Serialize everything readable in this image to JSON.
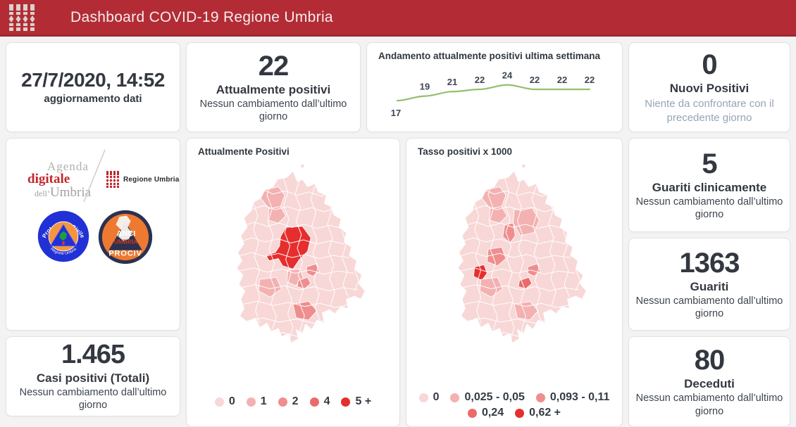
{
  "header": {
    "title": "Dashboard COVID-19 Regione Umbria"
  },
  "cards": {
    "updated": {
      "value": "27/7/2020, 14:52",
      "label": "aggiornamento dati"
    },
    "current_positives": {
      "value": "22",
      "label": "Attualmente positivi",
      "sublabel": "Nessun cambiamento dall’ultimo giorno"
    },
    "new_positives": {
      "value": "0",
      "label": "Nuovi Positivi",
      "note": "Niente da confrontare con il precedente giorno"
    },
    "clinically_recovered": {
      "value": "5",
      "label": "Guariti clinicamente",
      "sublabel": "Nessun cambiamento dall’ultimo giorno"
    },
    "recovered": {
      "value": "1363",
      "label": "Guariti",
      "sublabel": "Nessun cambiamento dall’ultimo giorno"
    },
    "deceased": {
      "value": "80",
      "label": "Deceduti",
      "sublabel": "Nessun cambiamento dall’ultimo giorno"
    },
    "total_cases": {
      "value": "1.465",
      "label": "Casi positivi (Totali)",
      "sublabel": "Nessun cambiamento dall’ultimo giorno"
    }
  },
  "chart_data": [
    {
      "type": "line",
      "title": "Andamento attualmente positivi ultima settimana",
      "values": [
        17,
        19,
        21,
        22,
        24,
        22,
        22,
        22
      ],
      "color": "#94be6e",
      "label_color": "#3c4654",
      "data_labels_shown": true,
      "axes_shown": false,
      "ylim": [
        15,
        26
      ]
    },
    {
      "type": "choropleth",
      "region": "Umbria",
      "title": "Attualmente Positivi",
      "legend": [
        {
          "label": "0",
          "color": "#f8d7d7"
        },
        {
          "label": "1",
          "color": "#f4b1b1"
        },
        {
          "label": "2",
          "color": "#ef8e8e"
        },
        {
          "label": "4",
          "color": "#ea6a6a"
        },
        {
          "label": "5 +",
          "color": "#e62e2e"
        }
      ],
      "highlighted": {
        "perugia": 4,
        "nw1": 1,
        "nw2": 1,
        "torgiano": 1,
        "magione": 1,
        "east1": 2,
        "east2": 2,
        "spoleto": 2
      }
    },
    {
      "type": "choropleth",
      "region": "Umbria",
      "title": "Tasso positivi x 1000",
      "legend": [
        {
          "label": "0",
          "color": "#f8d7d7"
        },
        {
          "label": "0,025 - 0,05",
          "color": "#f4b1b1"
        },
        {
          "label": "0,093 - 0,11",
          "color": "#ef8e8e"
        },
        {
          "label": "0,24",
          "color": "#ea6a6a"
        },
        {
          "label": "0,62 +",
          "color": "#e62e2e"
        }
      ],
      "highlighted": {
        "nw1": 1,
        "nw2": 1,
        "gubbio": 1,
        "valfabbrica": 2,
        "corciano": 2,
        "westred": 4,
        "magione": 1,
        "east1": 2,
        "east2": 3,
        "spoleto": 1
      }
    }
  ],
  "logos": {
    "agenda": {
      "line1": "Agenda",
      "line2": "digitale",
      "line3a": "dell’",
      "line3b": "Umbria"
    },
    "regione": {
      "label": "Regione Umbria"
    },
    "protezione": {
      "top": "Protezione Civile",
      "bottom": "Regione Umbria"
    },
    "anci": {
      "line1": "ANCI",
      "line2": "UMBRIA",
      "line3": "PROCIV"
    }
  }
}
